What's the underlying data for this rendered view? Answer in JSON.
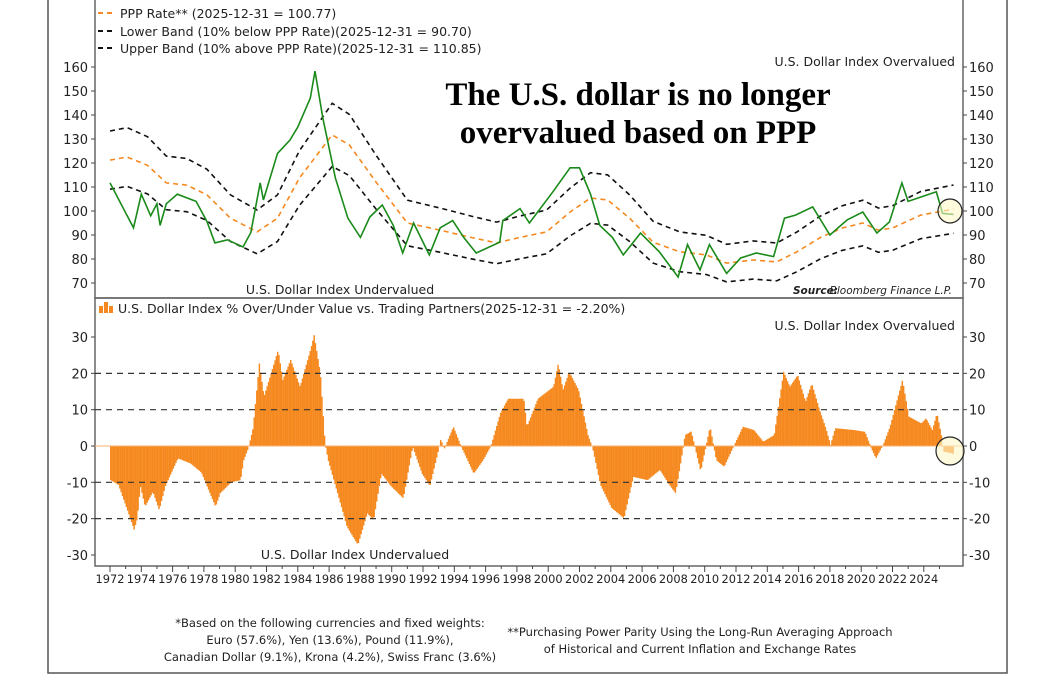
{
  "chart_data": [
    {
      "type": "line",
      "title": "The U.S. dollar is no longer overvalued based on PPP",
      "title_lines": [
        "The U.S. dollar is no longer",
        "overvalued based on PPP"
      ],
      "legend": [
        {
          "label": "PPP Rate** (2025-12-31 = 100.77)",
          "color": "#f5891f",
          "style": "dashed"
        },
        {
          "label": "Lower Band (10% below PPP Rate)(2025-12-31 = 90.70)",
          "color": "#111111",
          "style": "dashed"
        },
        {
          "label": "Upper Band (10% above PPP Rate)(2025-12-31 = 110.85)",
          "color": "#111111",
          "style": "dashed"
        }
      ],
      "legend_placement": "top-left",
      "annotation_over": "U.S. Dollar Index Overvalued",
      "annotation_under": "U.S. Dollar Index Undervalued",
      "source_label": "Source:",
      "source_value": "Bloomberg Finance L.P.",
      "ylim": [
        65,
        165
      ],
      "yticks": [
        70,
        80,
        90,
        100,
        110,
        120,
        130,
        140,
        150,
        160
      ],
      "band_pct": 10,
      "series": [
        {
          "key": "dxy",
          "color": "#1a8a1a",
          "x": [
            1972.0,
            1973.5,
            1974.0,
            1974.6,
            1975.0,
            1975.2,
            1975.6,
            1976.3,
            1977.5,
            1978.2,
            1978.7,
            1979.5,
            1980.5,
            1981.0,
            1981.6,
            1981.8,
            1982.7,
            1983.5,
            1984.0,
            1984.8,
            1985.1,
            1985.6,
            1986.4,
            1987.2,
            1988.0,
            1988.6,
            1989.4,
            1990.1,
            1990.7,
            1991.4,
            1992.4,
            1993.1,
            1993.9,
            1994.6,
            1995.4,
            1996.9,
            1997.1,
            1998.2,
            1998.8,
            2000.3,
            2001.4,
            2002.0,
            2002.7,
            2003.3,
            2004.1,
            2004.8,
            2005.9,
            2007.1,
            2008.3,
            2008.9,
            2009.7,
            2010.3,
            2011.4,
            2012.3,
            2013.3,
            2014.4,
            2015.1,
            2015.8,
            2016.9,
            2018.0,
            2019.1,
            2020.1,
            2021.0,
            2021.8,
            2022.6,
            2023.0,
            2024.8,
            2025.2,
            2025.9
          ],
          "y": [
            111.7,
            93,
            107,
            98,
            103,
            94,
            103,
            107,
            104,
            95.6,
            86.7,
            88,
            85,
            91,
            111.7,
            104.6,
            124,
            129.6,
            135,
            147,
            158.3,
            138.8,
            113.7,
            97,
            89,
            97.5,
            102.5,
            94,
            82.5,
            95,
            81.7,
            93,
            96,
            89,
            82.5,
            87,
            96,
            101,
            95,
            108,
            118,
            118,
            107,
            94,
            89,
            81.7,
            90.8,
            83,
            72.5,
            86,
            75.4,
            86,
            74,
            80.4,
            82.5,
            81,
            97,
            98.3,
            101.7,
            90,
            96.3,
            99.6,
            90.8,
            95.4,
            111.7,
            104,
            108,
            99,
            98.6
          ]
        },
        {
          "key": "ppp",
          "color": "#f5891f",
          "x": [
            1972.0,
            1973.1,
            1974.4,
            1975.6,
            1976.9,
            1978.2,
            1979.7,
            1981.4,
            1982.7,
            1984.1,
            1986.2,
            1987.3,
            1989.0,
            1991.0,
            1993.1,
            1995.2,
            1996.7,
            1998.2,
            1999.9,
            2001.4,
            2002.7,
            2003.8,
            2005.2,
            2006.7,
            2008.4,
            2010.1,
            2011.4,
            2013.1,
            2014.6,
            2015.9,
            2017.4,
            2018.8,
            2020.1,
            2021.1,
            2022.0,
            2023.8,
            2025.9
          ],
          "y": [
            121.2,
            122.5,
            119,
            111.7,
            110.8,
            106.7,
            97,
            91.3,
            97,
            113.7,
            131.7,
            127.5,
            112,
            95,
            92,
            88.8,
            86.7,
            89,
            91.3,
            99.6,
            105.4,
            104.6,
            97,
            87,
            83,
            81.7,
            78.3,
            79.6,
            78.8,
            83,
            89,
            92.9,
            95,
            92,
            92.9,
            98.3,
            100.77
          ]
        }
      ]
    },
    {
      "type": "bar",
      "legend": [
        {
          "label": "U.S. Dollar Index % Over/Under Value vs. Trading Partners(2025-12-31 = -2.20%)",
          "color": "#f5891f"
        }
      ],
      "annotation_over": "U.S. Dollar Index Overvalued",
      "annotation_under": "U.S. Dollar Index Undervalued",
      "ylim": [
        -32,
        33
      ],
      "yticks": [
        -30,
        -20,
        -10,
        0,
        10,
        20,
        30
      ],
      "gridlines": [
        -20,
        -10,
        10,
        20
      ],
      "xticks": [
        "1972",
        "1974",
        "1976",
        "1978",
        "1980",
        "1982",
        "1984",
        "1986",
        "1988",
        "1990",
        "1992",
        "1994",
        "1996",
        "1998",
        "2000",
        "2002",
        "2004",
        "2006",
        "2008",
        "2010",
        "2012",
        "2014",
        "2016",
        "2018",
        "2020",
        "2022",
        "2024"
      ],
      "x": [
        1972.0,
        1972.5,
        1973.1,
        1973.5,
        1973.7,
        1973.9,
        1974.2,
        1974.7,
        1975.1,
        1975.5,
        1976.3,
        1977.1,
        1977.8,
        1978.7,
        1979.0,
        1979.7,
        1980.3,
        1980.5,
        1980.8,
        1981.1,
        1981.5,
        1981.8,
        1982.7,
        1983.0,
        1983.5,
        1984.1,
        1984.8,
        1985.0,
        1985.4,
        1985.7,
        1985.9,
        1986.5,
        1987.1,
        1987.8,
        1988.4,
        1988.8,
        1989.3,
        1989.9,
        1990.7,
        1991.3,
        1991.9,
        1992.4,
        1992.9,
        1993.1,
        1993.3,
        1993.9,
        1994.4,
        1994.7,
        1995.2,
        1995.8,
        1996.3,
        1996.9,
        1997.4,
        1998.4,
        1998.6,
        1999.3,
        2000.3,
        2000.6,
        2000.9,
        2001.3,
        2001.9,
        2002.5,
        2002.8,
        2003.3,
        2004.0,
        2004.8,
        2005.4,
        2006.3,
        2007.1,
        2007.7,
        2008.1,
        2008.6,
        2008.7,
        2009.1,
        2009.7,
        2010.3,
        2010.7,
        2011.2,
        2011.7,
        2012.4,
        2013.1,
        2013.7,
        2014.4,
        2015.0,
        2015.4,
        2015.9,
        2016.4,
        2016.8,
        2017.3,
        2017.7,
        2018.0,
        2018.3,
        2019.5,
        2020.2,
        2020.6,
        2020.9,
        2021.4,
        2021.8,
        2022.6,
        2023.0,
        2023.8,
        2024.1,
        2024.5,
        2024.8,
        2025.1,
        2025.2,
        2025.9
      ],
      "values": [
        -9.4,
        -10.7,
        -18,
        -23,
        -20,
        -11,
        -16.7,
        -12.6,
        -17.6,
        -11,
        -3.4,
        -4.8,
        -7.3,
        -16.7,
        -13,
        -10,
        -9.4,
        -3.9,
        -0.6,
        4.9,
        22.7,
        13.6,
        26.4,
        18.2,
        23.7,
        16.3,
        26.9,
        30.5,
        20,
        0.7,
        -3.9,
        -13,
        -22.2,
        -27.2,
        -18.5,
        -20.4,
        -7.6,
        -11,
        -14.4,
        -0.2,
        -7.6,
        -11,
        -2,
        2,
        -1,
        5.3,
        -0.2,
        -2.9,
        -7.6,
        -3.9,
        0,
        9,
        13,
        13,
        5.3,
        13,
        16.3,
        22.7,
        15.4,
        20.4,
        15.4,
        3,
        -0.6,
        -10.7,
        -17,
        -19.9,
        -8.5,
        -9.4,
        -6.6,
        -10.7,
        -13,
        0,
        3,
        4,
        -7,
        5.3,
        -3.9,
        -5.7,
        -1.1,
        5.3,
        4.4,
        1.2,
        3,
        20.4,
        16.3,
        19.5,
        12.2,
        17.2,
        9.9,
        4.9,
        0.3,
        4.9,
        4.4,
        3.9,
        -0.6,
        -3.4,
        0.7,
        5.3,
        18.2,
        8.1,
        6.2,
        7.6,
        4.4,
        9,
        2.6,
        -1.5,
        -2.2
      ]
    }
  ],
  "footnotes": {
    "currencies": [
      "*Based on the following currencies and fixed weights:",
      "Euro (57.6%), Yen (13.6%), Pound (11.9%),",
      "Canadian Dollar (9.1%), Krona (4.2%), Swiss Franc (3.6%)"
    ],
    "ppp": [
      "**Purchasing Power Parity Using the Long-Run Averaging Approach",
      "of Historical and Current Inflation and Exchange Rates"
    ]
  },
  "colors": {
    "highlight": "#fdf6c8",
    "bar": "#f5891f",
    "dxy": "#1a8a1a",
    "ppp": "#f5891f",
    "band": "#111111"
  }
}
